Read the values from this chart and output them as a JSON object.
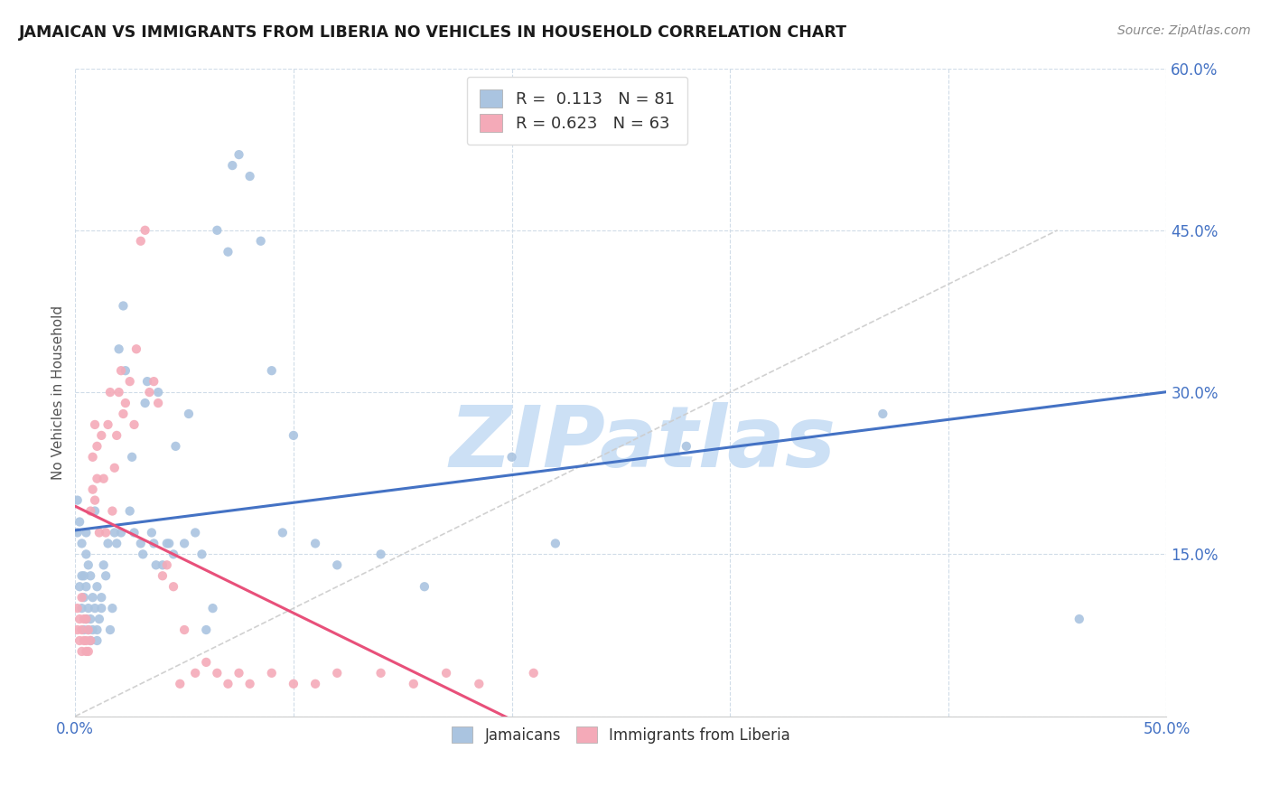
{
  "title": "JAMAICAN VS IMMIGRANTS FROM LIBERIA NO VEHICLES IN HOUSEHOLD CORRELATION CHART",
  "source": "Source: ZipAtlas.com",
  "ylabel": "No Vehicles in Household",
  "xlim": [
    0.0,
    0.5
  ],
  "ylim": [
    0.0,
    0.6
  ],
  "x_tick_vals": [
    0.0,
    0.1,
    0.2,
    0.3,
    0.4,
    0.5
  ],
  "x_tick_labels": [
    "0.0%",
    "",
    "",
    "",
    "",
    "50.0%"
  ],
  "y_tick_vals": [
    0.0,
    0.15,
    0.3,
    0.45,
    0.6
  ],
  "y_tick_labels": [
    "",
    "15.0%",
    "30.0%",
    "45.0%",
    "60.0%"
  ],
  "r_jamaican": 0.113,
  "n_jamaican": 81,
  "r_liberia": 0.623,
  "n_liberia": 63,
  "color_jamaican": "#aac4e0",
  "color_liberia": "#f4aab8",
  "line_color_jamaican": "#4472c4",
  "line_color_liberia": "#e8507a",
  "diag_line_color": "#cccccc",
  "grid_color": "#d0dce8",
  "watermark_text": "ZIPatlas",
  "watermark_color": "#cce0f5",
  "legend_text_color_r": "#333333",
  "legend_text_color_n": "#e05020",
  "jamaican_x": [
    0.001,
    0.001,
    0.002,
    0.002,
    0.003,
    0.003,
    0.003,
    0.004,
    0.004,
    0.004,
    0.005,
    0.005,
    0.005,
    0.005,
    0.006,
    0.006,
    0.006,
    0.007,
    0.007,
    0.007,
    0.008,
    0.008,
    0.009,
    0.009,
    0.01,
    0.01,
    0.01,
    0.011,
    0.012,
    0.012,
    0.013,
    0.014,
    0.015,
    0.016,
    0.017,
    0.018,
    0.019,
    0.02,
    0.021,
    0.022,
    0.023,
    0.025,
    0.026,
    0.027,
    0.03,
    0.031,
    0.032,
    0.033,
    0.035,
    0.036,
    0.037,
    0.038,
    0.04,
    0.042,
    0.043,
    0.045,
    0.046,
    0.05,
    0.052,
    0.055,
    0.058,
    0.06,
    0.063,
    0.065,
    0.07,
    0.072,
    0.075,
    0.08,
    0.085,
    0.09,
    0.095,
    0.1,
    0.11,
    0.12,
    0.14,
    0.16,
    0.2,
    0.22,
    0.28,
    0.37,
    0.46
  ],
  "jamaican_y": [
    0.2,
    0.17,
    0.18,
    0.12,
    0.1,
    0.13,
    0.16,
    0.08,
    0.11,
    0.13,
    0.15,
    0.09,
    0.12,
    0.17,
    0.08,
    0.1,
    0.14,
    0.09,
    0.13,
    0.07,
    0.11,
    0.08,
    0.1,
    0.19,
    0.08,
    0.07,
    0.12,
    0.09,
    0.11,
    0.1,
    0.14,
    0.13,
    0.16,
    0.08,
    0.1,
    0.17,
    0.16,
    0.34,
    0.17,
    0.38,
    0.32,
    0.19,
    0.24,
    0.17,
    0.16,
    0.15,
    0.29,
    0.31,
    0.17,
    0.16,
    0.14,
    0.3,
    0.14,
    0.16,
    0.16,
    0.15,
    0.25,
    0.16,
    0.28,
    0.17,
    0.15,
    0.08,
    0.1,
    0.45,
    0.43,
    0.51,
    0.52,
    0.5,
    0.44,
    0.32,
    0.17,
    0.26,
    0.16,
    0.14,
    0.15,
    0.12,
    0.24,
    0.16,
    0.25,
    0.28,
    0.09
  ],
  "liberia_x": [
    0.001,
    0.001,
    0.002,
    0.002,
    0.003,
    0.003,
    0.003,
    0.004,
    0.004,
    0.005,
    0.005,
    0.005,
    0.006,
    0.006,
    0.007,
    0.007,
    0.008,
    0.008,
    0.009,
    0.009,
    0.01,
    0.01,
    0.011,
    0.012,
    0.013,
    0.014,
    0.015,
    0.016,
    0.017,
    0.018,
    0.019,
    0.02,
    0.021,
    0.022,
    0.023,
    0.025,
    0.027,
    0.028,
    0.03,
    0.032,
    0.034,
    0.036,
    0.038,
    0.04,
    0.042,
    0.045,
    0.048,
    0.05,
    0.055,
    0.06,
    0.065,
    0.07,
    0.075,
    0.08,
    0.09,
    0.1,
    0.11,
    0.12,
    0.14,
    0.155,
    0.17,
    0.185,
    0.21
  ],
  "liberia_y": [
    0.1,
    0.08,
    0.07,
    0.09,
    0.06,
    0.08,
    0.11,
    0.07,
    0.09,
    0.07,
    0.09,
    0.06,
    0.08,
    0.06,
    0.07,
    0.19,
    0.21,
    0.24,
    0.27,
    0.2,
    0.22,
    0.25,
    0.17,
    0.26,
    0.22,
    0.17,
    0.27,
    0.3,
    0.19,
    0.23,
    0.26,
    0.3,
    0.32,
    0.28,
    0.29,
    0.31,
    0.27,
    0.34,
    0.44,
    0.45,
    0.3,
    0.31,
    0.29,
    0.13,
    0.14,
    0.12,
    0.03,
    0.08,
    0.04,
    0.05,
    0.04,
    0.03,
    0.04,
    0.03,
    0.04,
    0.03,
    0.03,
    0.04,
    0.04,
    0.03,
    0.04,
    0.03,
    0.04
  ]
}
